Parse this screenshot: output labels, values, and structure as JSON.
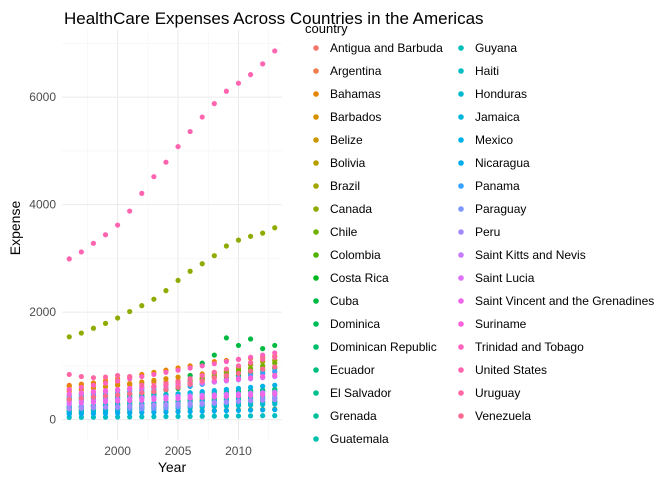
{
  "chart_data": {
    "type": "scatter",
    "title": "HealthCare Expenses Across Countries in the Americas",
    "xlabel": "Year",
    "ylabel": "Expense",
    "xlim": [
      1995.4,
      2013.6
    ],
    "ylim": [
      -380,
      7250
    ],
    "x_ticks": [
      2000,
      2005,
      2010
    ],
    "y_ticks": [
      0,
      2000,
      4000,
      6000
    ],
    "grid": true,
    "legend_title": "country",
    "legend_placement": "right",
    "x": [
      1996,
      1997,
      1998,
      1999,
      2000,
      2001,
      2002,
      2003,
      2004,
      2005,
      2006,
      2007,
      2008,
      2009,
      2010,
      2011,
      2012,
      2013
    ],
    "series": [
      {
        "name": "Antigua and Barbuda",
        "color": "#F8766D",
        "values": [
          560,
          580,
          600,
          620,
          640,
          660,
          680,
          690,
          700,
          720,
          740,
          760,
          780,
          800,
          820,
          840,
          860,
          880
        ]
      },
      {
        "name": "Argentina",
        "color": "#F07E4C",
        "values": [
          640,
          660,
          680,
          700,
          690,
          640,
          450,
          500,
          560,
          620,
          700,
          780,
          860,
          900,
          960,
          1020,
          1080,
          1100
        ]
      },
      {
        "name": "Bahamas",
        "color": "#E58700",
        "values": [
          620,
          650,
          680,
          720,
          760,
          800,
          840,
          880,
          920,
          960,
          1000,
          1040,
          1080,
          1100,
          1120,
          1140,
          1160,
          1180
        ]
      },
      {
        "name": "Barbados",
        "color": "#D89000",
        "values": [
          520,
          550,
          580,
          610,
          640,
          670,
          700,
          730,
          760,
          790,
          820,
          850,
          880,
          900,
          920,
          940,
          960,
          980
        ]
      },
      {
        "name": "Belize",
        "color": "#C99800",
        "values": [
          170,
          180,
          190,
          200,
          210,
          220,
          230,
          240,
          250,
          260,
          270,
          280,
          290,
          300,
          310,
          320,
          330,
          340
        ]
      },
      {
        "name": "Bolivia",
        "color": "#B79F00",
        "values": [
          110,
          115,
          120,
          125,
          130,
          135,
          140,
          145,
          150,
          155,
          160,
          165,
          170,
          175,
          180,
          185,
          190,
          195
        ]
      },
      {
        "name": "Brazil",
        "color": "#A3A500",
        "values": [
          380,
          400,
          420,
          440,
          460,
          480,
          500,
          520,
          560,
          600,
          660,
          740,
          820,
          880,
          950,
          1020,
          1080,
          1100
        ]
      },
      {
        "name": "Canada",
        "color": "#8EAB00",
        "values": [
          1540,
          1610,
          1700,
          1790,
          1890,
          2010,
          2120,
          2240,
          2400,
          2590,
          2760,
          2900,
          3050,
          3230,
          3340,
          3410,
          3470,
          3570
        ]
      },
      {
        "name": "Chile",
        "color": "#72B000",
        "values": [
          440,
          470,
          500,
          520,
          540,
          560,
          580,
          600,
          640,
          680,
          720,
          760,
          800,
          850,
          900,
          950,
          1000,
          1050
        ]
      },
      {
        "name": "Colombia",
        "color": "#4DB400",
        "values": [
          230,
          240,
          250,
          260,
          270,
          280,
          290,
          300,
          320,
          340,
          360,
          380,
          400,
          420,
          440,
          460,
          480,
          500
        ]
      },
      {
        "name": "Costa Rica",
        "color": "#00B81F",
        "values": [
          380,
          400,
          420,
          440,
          460,
          480,
          500,
          520,
          550,
          580,
          620,
          660,
          700,
          760,
          820,
          880,
          920,
          960
        ]
      },
      {
        "name": "Cuba",
        "color": "#00BA42",
        "values": [
          200,
          220,
          240,
          270,
          300,
          340,
          400,
          480,
          560,
          680,
          820,
          1050,
          1200,
          1520,
          1380,
          1500,
          1320,
          1380
        ]
      },
      {
        "name": "Dominica",
        "color": "#00BC59",
        "values": [
          380,
          400,
          410,
          420,
          430,
          440,
          450,
          460,
          470,
          480,
          490,
          500,
          510,
          520,
          530,
          540,
          550,
          560
        ]
      },
      {
        "name": "Dominican Republic",
        "color": "#00BE6C",
        "values": [
          220,
          240,
          260,
          280,
          300,
          320,
          300,
          280,
          300,
          340,
          380,
          420,
          460,
          480,
          500,
          520,
          540,
          560
        ]
      },
      {
        "name": "Ecuador",
        "color": "#00BF7D",
        "values": [
          160,
          170,
          180,
          190,
          200,
          220,
          240,
          260,
          280,
          300,
          320,
          340,
          360,
          380,
          400,
          420,
          440,
          460
        ]
      },
      {
        "name": "El Salvador",
        "color": "#00C08D",
        "values": [
          240,
          250,
          260,
          270,
          280,
          290,
          300,
          310,
          320,
          330,
          340,
          350,
          360,
          370,
          380,
          390,
          400,
          410
        ]
      },
      {
        "name": "Grenada",
        "color": "#00C19C",
        "values": [
          360,
          370,
          380,
          390,
          400,
          410,
          420,
          430,
          440,
          450,
          460,
          470,
          480,
          490,
          500,
          510,
          520,
          530
        ]
      },
      {
        "name": "Guatemala",
        "color": "#00C0AA",
        "values": [
          160,
          170,
          180,
          190,
          200,
          210,
          220,
          230,
          240,
          250,
          260,
          270,
          280,
          290,
          300,
          310,
          320,
          330
        ]
      },
      {
        "name": "Guyana",
        "color": "#00BFB8",
        "values": [
          140,
          150,
          160,
          170,
          180,
          190,
          200,
          210,
          220,
          230,
          240,
          250,
          260,
          270,
          280,
          290,
          300,
          310
        ]
      },
      {
        "name": "Haiti",
        "color": "#00BDC4",
        "values": [
          40,
          42,
          44,
          46,
          48,
          50,
          52,
          54,
          56,
          58,
          60,
          62,
          64,
          66,
          68,
          70,
          72,
          74
        ]
      },
      {
        "name": "Honduras",
        "color": "#00BAD0",
        "values": [
          120,
          130,
          140,
          150,
          160,
          170,
          180,
          190,
          200,
          210,
          220,
          230,
          240,
          250,
          260,
          270,
          280,
          290
        ]
      },
      {
        "name": "Jamaica",
        "color": "#00B7DB",
        "values": [
          220,
          230,
          240,
          250,
          260,
          270,
          280,
          290,
          300,
          310,
          320,
          330,
          340,
          350,
          360,
          370,
          380,
          390
        ]
      },
      {
        "name": "Mexico",
        "color": "#00B2E5",
        "values": [
          300,
          320,
          340,
          360,
          380,
          400,
          420,
          440,
          460,
          480,
          500,
          520,
          540,
          560,
          580,
          600,
          620,
          640
        ]
      },
      {
        "name": "Nicaragua",
        "color": "#00ACEE",
        "values": [
          100,
          105,
          110,
          115,
          120,
          125,
          130,
          135,
          140,
          145,
          150,
          155,
          160,
          165,
          170,
          175,
          180,
          185
        ]
      },
      {
        "name": "Panama",
        "color": "#35A2FF",
        "values": [
          420,
          440,
          460,
          480,
          500,
          520,
          540,
          560,
          580,
          600,
          620,
          660,
          700,
          740,
          780,
          820,
          860,
          900
        ]
      },
      {
        "name": "Paraguay",
        "color": "#7E96FF",
        "values": [
          260,
          250,
          240,
          230,
          220,
          210,
          200,
          210,
          220,
          240,
          260,
          280,
          300,
          320,
          340,
          360,
          380,
          400
        ]
      },
      {
        "name": "Peru",
        "color": "#A58AFF",
        "values": [
          200,
          210,
          220,
          230,
          240,
          250,
          260,
          270,
          280,
          290,
          300,
          310,
          320,
          330,
          340,
          350,
          360,
          370
        ]
      },
      {
        "name": "Saint Kitts and Nevis",
        "color": "#C77CFF",
        "values": [
          460,
          480,
          500,
          520,
          540,
          560,
          580,
          600,
          620,
          640,
          660,
          680,
          700,
          720,
          740,
          760,
          780,
          800
        ]
      },
      {
        "name": "Saint Lucia",
        "color": "#DE71F9",
        "values": [
          340,
          350,
          360,
          370,
          380,
          390,
          400,
          410,
          420,
          430,
          440,
          450,
          460,
          470,
          480,
          490,
          500,
          510
        ]
      },
      {
        "name": "Saint Vincent and the Grenadines",
        "color": "#EE67EA",
        "values": [
          300,
          310,
          320,
          330,
          340,
          350,
          360,
          370,
          380,
          390,
          400,
          410,
          420,
          430,
          440,
          450,
          460,
          470
        ]
      },
      {
        "name": "Suriname",
        "color": "#F962DD",
        "values": [
          480,
          500,
          520,
          540,
          560,
          580,
          600,
          620,
          640,
          660,
          680,
          700,
          720,
          740,
          760,
          780,
          800,
          820
        ]
      },
      {
        "name": "Trinidad and Tobago",
        "color": "#FF62BC",
        "values": [
          560,
          600,
          640,
          680,
          720,
          760,
          800,
          840,
          880,
          920,
          960,
          1000,
          1040,
          1080,
          1120,
          1160,
          1200,
          1240
        ]
      },
      {
        "name": "United States",
        "color": "#FF64B0",
        "values": [
          2990,
          3120,
          3280,
          3440,
          3620,
          3880,
          4210,
          4520,
          4790,
          5080,
          5360,
          5630,
          5880,
          6110,
          6260,
          6420,
          6620,
          6860
        ]
      },
      {
        "name": "Uruguay",
        "color": "#FF67A4",
        "values": [
          840,
          800,
          780,
          790,
          820,
          800,
          640,
          620,
          660,
          700,
          760,
          820,
          880,
          940,
          1000,
          1060,
          1120,
          1160
        ]
      },
      {
        "name": "Venezuela",
        "color": "#FF6C91",
        "values": [
          380,
          400,
          420,
          440,
          460,
          480,
          500,
          520,
          560,
          600,
          660,
          720,
          780,
          820,
          860,
          900,
          940,
          980
        ]
      }
    ]
  }
}
